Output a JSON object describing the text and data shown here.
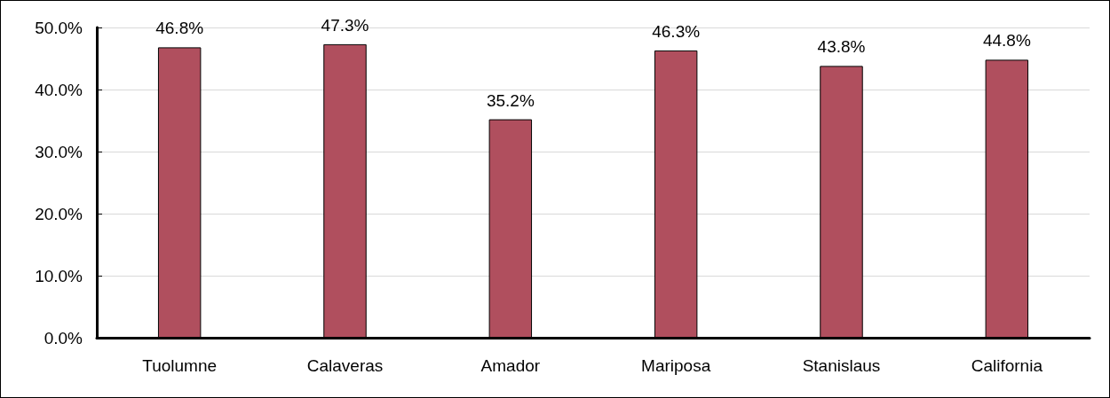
{
  "chart_data": {
    "type": "bar",
    "categories": [
      "Tuolumne",
      "Calaveras",
      "Amador",
      "Mariposa",
      "Stanislaus",
      "California"
    ],
    "values": [
      46.8,
      47.3,
      35.2,
      46.3,
      43.8,
      44.8
    ],
    "value_labels": [
      "46.8%",
      "47.3%",
      "35.2%",
      "46.3%",
      "43.8%",
      "44.8%"
    ],
    "color": "#b04f5e",
    "ylim": [
      0,
      50
    ],
    "yticks": [
      {
        "value": 0,
        "label": "0.0%"
      },
      {
        "value": 10,
        "label": "10.0%"
      },
      {
        "value": 20,
        "label": "20.0%"
      },
      {
        "value": 30,
        "label": "30.0%"
      },
      {
        "value": 40,
        "label": "40.0%"
      },
      {
        "value": 50,
        "label": "50.0%"
      }
    ],
    "grid": "y"
  }
}
